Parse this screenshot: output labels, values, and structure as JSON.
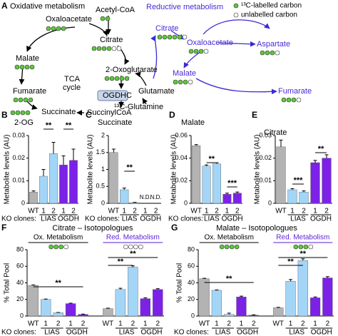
{
  "diagram": {
    "panel": "A",
    "left_title": "Oxidative metabolism",
    "right_title": "Reductive metabolism",
    "legend": [
      "¹³C-labelled carbon",
      "unlabelled carbon"
    ],
    "labels": [
      "Oxaloacetate",
      "Acetyl-CoA",
      "Citrate",
      "Malate",
      "Fumarate",
      "Succinate",
      "TCA",
      "cycle",
      "2-Oxoglutarate",
      "OGDHC",
      "SuccinylCoA",
      "Glutamate",
      "¹³C-Glutamine"
    ],
    "reductive_labels": [
      "Citrate",
      "Oxaloacetate",
      "Aspartate",
      "Malate",
      "Fumarate"
    ]
  },
  "chart_data": [
    {
      "type": "bar",
      "panel": "B",
      "title": "2-OG",
      "ylabel": "Metabolite levels (AU)",
      "group_prefix": "KO clones:",
      "categories": [
        "WT",
        "1",
        "2",
        "1",
        "2"
      ],
      "groups": [
        "LIAS",
        "OGDH"
      ],
      "values": [
        0.005,
        0.012,
        0.022,
        0.017,
        0.019
      ],
      "errors": [
        0.0005,
        0.003,
        0.005,
        0.004,
        0.005
      ],
      "colors": [
        "#b3b3b3",
        "#a3d5f7",
        "#a3d5f7",
        "#7b22e6",
        "#7b22e6"
      ],
      "ylim": [
        0,
        0.03
      ],
      "yticks": [
        0,
        0.01,
        0.02,
        0.03
      ],
      "annotations": [
        "**",
        "**"
      ]
    },
    {
      "type": "bar",
      "panel": "C",
      "title": "Succinate",
      "ylabel": "Metabolite levels (AU)",
      "group_prefix": "KO clones:",
      "categories": [
        "WT",
        "1",
        "2",
        "1",
        "2"
      ],
      "groups": [
        "LIAS",
        "OGDH"
      ],
      "values": [
        1.5,
        0.4,
        0.02,
        null,
        null
      ],
      "value_labels": [
        null,
        null,
        null,
        "N.D.",
        "N.D."
      ],
      "errors": [
        0.1,
        0.05,
        0.01,
        null,
        null
      ],
      "colors": [
        "#b3b3b3",
        "#a3d5f7",
        "#a3d5f7",
        "#7b22e6",
        "#7b22e6"
      ],
      "ylim": [
        0,
        2
      ],
      "yticks": [
        0,
        0.5,
        1,
        1.5,
        2
      ],
      "annotations": [
        "**"
      ]
    },
    {
      "type": "bar",
      "panel": "D",
      "title": "Malate",
      "ylabel": "Metabolite levels (AU)",
      "group_prefix": "KO clones:",
      "categories": [
        "WT",
        "1",
        "2",
        "1",
        "2"
      ],
      "groups": [
        "LIAS",
        "OGDH"
      ],
      "values": [
        0.051,
        0.033,
        0.035,
        0.008,
        0.009
      ],
      "errors": [
        0.001,
        0.001,
        0.001,
        0.001,
        0.001
      ],
      "colors": [
        "#b3b3b3",
        "#a3d5f7",
        "#a3d5f7",
        "#7b22e6",
        "#7b22e6"
      ],
      "ylim": [
        0,
        0.06
      ],
      "yticks": [
        0,
        0.02,
        0.04,
        0.06
      ],
      "annotations": [
        "**",
        "***"
      ]
    },
    {
      "type": "bar",
      "panel": "E",
      "title": "Citrate",
      "ylabel": "Metabolite levels (AU)",
      "categories": [
        "WT",
        "1",
        "2",
        "1",
        "2"
      ],
      "groups": [
        "LIAS",
        "OGDH"
      ],
      "values": [
        0.025,
        0.006,
        0.005,
        0.018,
        0.02
      ],
      "errors": [
        0.003,
        0.0005,
        0.0005,
        0.001,
        0.0015
      ],
      "colors": [
        "#b3b3b3",
        "#a3d5f7",
        "#a3d5f7",
        "#7b22e6",
        "#7b22e6"
      ],
      "ylim": [
        0,
        0.03
      ],
      "yticks": [
        0,
        0.01,
        0.02,
        0.03
      ],
      "annotations": [
        "***",
        "**"
      ]
    },
    {
      "type": "bar",
      "panel": "F",
      "title": "Citrate – Isotopologues",
      "ylabel": "% Total Pool",
      "group_prefix": "KO clones:",
      "categories": [
        "WT",
        "1",
        "2",
        "1",
        "2"
      ],
      "groups": [
        "LIAS",
        "OGDH"
      ],
      "colors": [
        "#b3b3b3",
        "#a3d5f7",
        "#a3d5f7",
        "#7b22e6",
        "#7b22e6"
      ],
      "series": [
        {
          "name": "Ox. Metabolism",
          "color": "#000000",
          "values": [
            37,
            20,
            4,
            15,
            2
          ],
          "errors": [
            0.5,
            0.5,
            0.3,
            0.5,
            0.3
          ]
        },
        {
          "name": "Red. Metabolism",
          "color": "#5a1fd6",
          "values": [
            9,
            32,
            59,
            21,
            32
          ],
          "errors": [
            0.5,
            1.5,
            1.5,
            1,
            1
          ]
        }
      ],
      "ylim": [
        0,
        80
      ],
      "yticks": [
        0,
        20,
        40,
        60,
        80
      ],
      "annotations": [
        "**",
        "**",
        "**"
      ]
    },
    {
      "type": "bar",
      "panel": "G",
      "title": "Malate – Isotopologues",
      "ylabel": "% Total Pool",
      "group_prefix": "KO clones:",
      "categories": [
        "WT",
        "1",
        "2",
        "1",
        "2"
      ],
      "groups": [
        "LIAS",
        "OGDH"
      ],
      "colors": [
        "#b3b3b3",
        "#a3d5f7",
        "#a3d5f7",
        "#7b22e6",
        "#7b22e6"
      ],
      "series": [
        {
          "name": "Ox. Metabolism",
          "color": "#000000",
          "values": [
            45,
            31,
            2,
            23,
            1
          ],
          "errors": [
            0.5,
            0.5,
            1.5,
            1,
            0.5
          ]
        },
        {
          "name": "Red. Metabolism",
          "color": "#5a1fd6",
          "values": [
            10,
            42,
            67,
            22,
            46
          ],
          "errors": [
            0.5,
            2,
            2,
            1,
            1.5
          ]
        }
      ],
      "ylim": [
        0,
        80
      ],
      "yticks": [
        0,
        20,
        40,
        60,
        80
      ],
      "annotations": [
        "**",
        "**",
        "**"
      ]
    }
  ]
}
